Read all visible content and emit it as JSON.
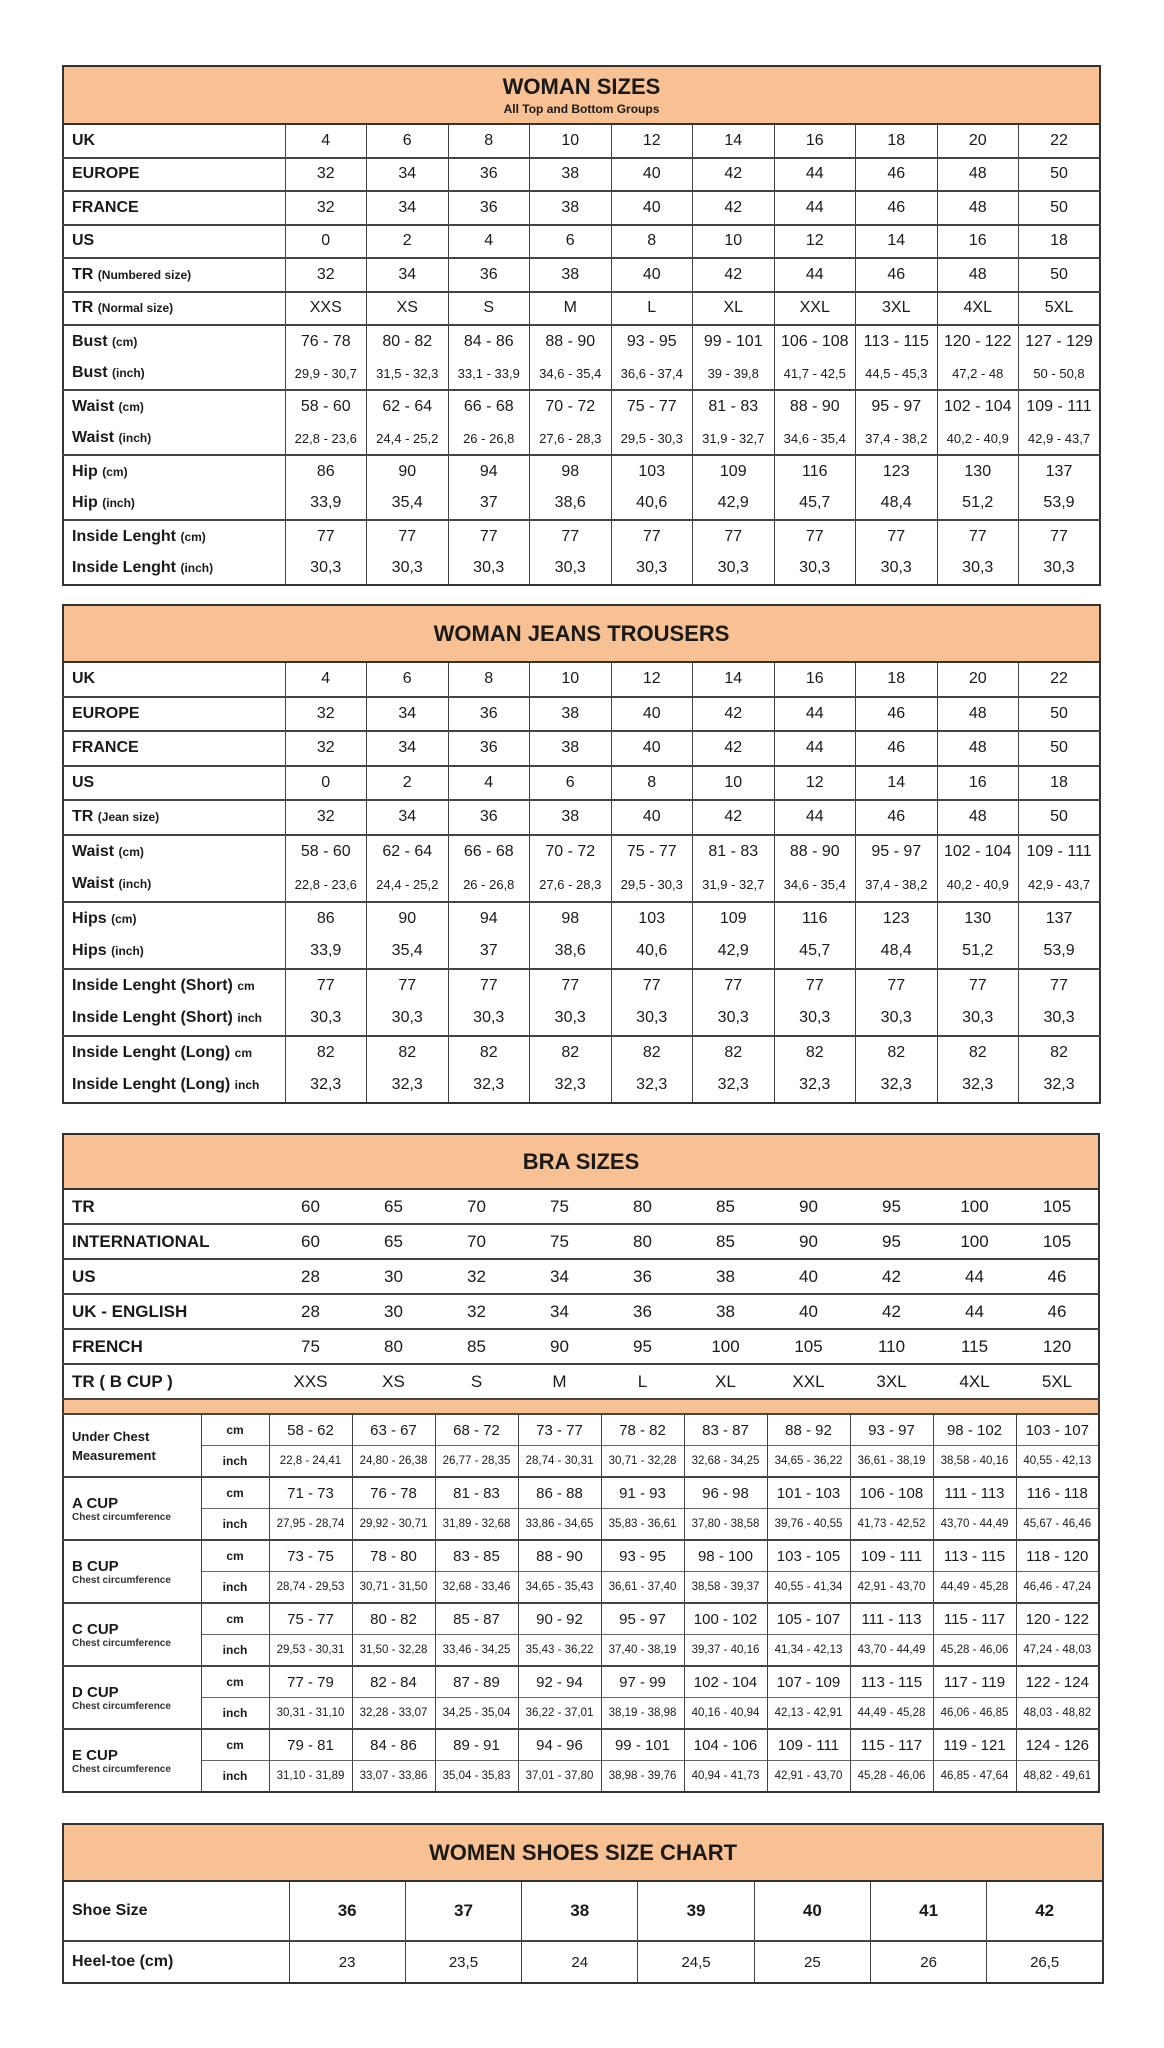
{
  "woman_sizes": {
    "title": "WOMAN SIZES",
    "subtitle": "All Top and Bottom Groups",
    "groups": [
      [
        {
          "label": "UK",
          "values": [
            "4",
            "6",
            "8",
            "10",
            "12",
            "14",
            "16",
            "18",
            "20",
            "22"
          ]
        }
      ],
      [
        {
          "label": "EUROPE",
          "values": [
            "32",
            "34",
            "36",
            "38",
            "40",
            "42",
            "44",
            "46",
            "48",
            "50"
          ]
        }
      ],
      [
        {
          "label": "FRANCE",
          "values": [
            "32",
            "34",
            "36",
            "38",
            "40",
            "42",
            "44",
            "46",
            "48",
            "50"
          ]
        }
      ],
      [
        {
          "label": "US",
          "values": [
            "0",
            "2",
            "4",
            "6",
            "8",
            "10",
            "12",
            "14",
            "16",
            "18"
          ]
        }
      ],
      [
        {
          "label": "TR",
          "note": "(Numbered size)",
          "values": [
            "32",
            "34",
            "36",
            "38",
            "40",
            "42",
            "44",
            "46",
            "48",
            "50"
          ]
        }
      ],
      [
        {
          "label": "TR",
          "note": "(Normal size)",
          "values": [
            "XXS",
            "XS",
            "S",
            "M",
            "L",
            "XL",
            "XXL",
            "3XL",
            "4XL",
            "5XL"
          ]
        }
      ],
      [
        {
          "label": "Bust",
          "note": "(cm)",
          "values": [
            "76 - 78",
            "80 - 82",
            "84 - 86",
            "88 - 90",
            "93 - 95",
            "99 - 101",
            "106 - 108",
            "113 - 115",
            "120 - 122",
            "127 - 129"
          ]
        },
        {
          "label": "Bust",
          "note": "(inch)",
          "small": true,
          "values": [
            "29,9 - 30,7",
            "31,5 - 32,3",
            "33,1 - 33,9",
            "34,6 - 35,4",
            "36,6 - 37,4",
            "39 - 39,8",
            "41,7 - 42,5",
            "44,5 - 45,3",
            "47,2 - 48",
            "50 - 50,8"
          ]
        }
      ],
      [
        {
          "label": "Waist",
          "note": "(cm)",
          "values": [
            "58 - 60",
            "62 - 64",
            "66 - 68",
            "70 - 72",
            "75 - 77",
            "81 - 83",
            "88 - 90",
            "95 - 97",
            "102 - 104",
            "109 - 111"
          ]
        },
        {
          "label": "Waist",
          "note": "(inch)",
          "small": true,
          "values": [
            "22,8 - 23,6",
            "24,4 - 25,2",
            "26 - 26,8",
            "27,6 - 28,3",
            "29,5 - 30,3",
            "31,9 - 32,7",
            "34,6 - 35,4",
            "37,4 - 38,2",
            "40,2 - 40,9",
            "42,9 - 43,7"
          ]
        }
      ],
      [
        {
          "label": "Hip",
          "note": "(cm)",
          "values": [
            "86",
            "90",
            "94",
            "98",
            "103",
            "109",
            "116",
            "123",
            "130",
            "137"
          ]
        },
        {
          "label": "Hip",
          "note": "(inch)",
          "values": [
            "33,9",
            "35,4",
            "37",
            "38,6",
            "40,6",
            "42,9",
            "45,7",
            "48,4",
            "51,2",
            "53,9"
          ]
        }
      ],
      [
        {
          "label": "Inside Lenght",
          "note": "(cm)",
          "values": [
            "77",
            "77",
            "77",
            "77",
            "77",
            "77",
            "77",
            "77",
            "77",
            "77"
          ]
        },
        {
          "label": "Inside Lenght",
          "note": "(inch)",
          "values": [
            "30,3",
            "30,3",
            "30,3",
            "30,3",
            "30,3",
            "30,3",
            "30,3",
            "30,3",
            "30,3",
            "30,3"
          ]
        }
      ]
    ]
  },
  "jeans": {
    "title": "WOMAN JEANS TROUSERS",
    "groups": [
      [
        {
          "label": "UK",
          "values": [
            "4",
            "6",
            "8",
            "10",
            "12",
            "14",
            "16",
            "18",
            "20",
            "22"
          ]
        }
      ],
      [
        {
          "label": "EUROPE",
          "values": [
            "32",
            "34",
            "36",
            "38",
            "40",
            "42",
            "44",
            "46",
            "48",
            "50"
          ]
        }
      ],
      [
        {
          "label": "FRANCE",
          "values": [
            "32",
            "34",
            "36",
            "38",
            "40",
            "42",
            "44",
            "46",
            "48",
            "50"
          ]
        }
      ],
      [
        {
          "label": "US",
          "values": [
            "0",
            "2",
            "4",
            "6",
            "8",
            "10",
            "12",
            "14",
            "16",
            "18"
          ]
        }
      ],
      [
        {
          "label": "TR",
          "note": "(Jean size)",
          "values": [
            "32",
            "34",
            "36",
            "38",
            "40",
            "42",
            "44",
            "46",
            "48",
            "50"
          ]
        }
      ],
      [
        {
          "label": "Waist",
          "note": "(cm)",
          "values": [
            "58 - 60",
            "62 - 64",
            "66 - 68",
            "70 - 72",
            "75 - 77",
            "81 - 83",
            "88 - 90",
            "95 - 97",
            "102 - 104",
            "109 - 111"
          ]
        },
        {
          "label": "Waist",
          "note": "(inch)",
          "small": true,
          "values": [
            "22,8 - 23,6",
            "24,4 - 25,2",
            "26 - 26,8",
            "27,6 - 28,3",
            "29,5 - 30,3",
            "31,9 - 32,7",
            "34,6 - 35,4",
            "37,4 - 38,2",
            "40,2 - 40,9",
            "42,9 - 43,7"
          ]
        }
      ],
      [
        {
          "label": "Hips",
          "note": "(cm)",
          "values": [
            "86",
            "90",
            "94",
            "98",
            "103",
            "109",
            "116",
            "123",
            "130",
            "137"
          ]
        },
        {
          "label": "Hips",
          "note": "(inch)",
          "values": [
            "33,9",
            "35,4",
            "37",
            "38,6",
            "40,6",
            "42,9",
            "45,7",
            "48,4",
            "51,2",
            "53,9"
          ]
        }
      ],
      [
        {
          "label": "Inside Lenght (Short)",
          "note": "cm",
          "values": [
            "77",
            "77",
            "77",
            "77",
            "77",
            "77",
            "77",
            "77",
            "77",
            "77"
          ]
        },
        {
          "label": "Inside Lenght (Short)",
          "note": "inch",
          "values": [
            "30,3",
            "30,3",
            "30,3",
            "30,3",
            "30,3",
            "30,3",
            "30,3",
            "30,3",
            "30,3",
            "30,3"
          ]
        }
      ],
      [
        {
          "label": "Inside Lenght (Long)",
          "note": "cm",
          "values": [
            "82",
            "82",
            "82",
            "82",
            "82",
            "82",
            "82",
            "82",
            "82",
            "82"
          ]
        },
        {
          "label": "Inside Lenght (Long)",
          "note": "inch",
          "values": [
            "32,3",
            "32,3",
            "32,3",
            "32,3",
            "32,3",
            "32,3",
            "32,3",
            "32,3",
            "32,3",
            "32,3"
          ]
        }
      ]
    ]
  },
  "bra": {
    "title": "BRA SIZES",
    "top_rows": [
      {
        "label": "TR",
        "values": [
          "60",
          "65",
          "70",
          "75",
          "80",
          "85",
          "90",
          "95",
          "100",
          "105"
        ]
      },
      {
        "label": "INTERNATIONAL",
        "values": [
          "60",
          "65",
          "70",
          "75",
          "80",
          "85",
          "90",
          "95",
          "100",
          "105"
        ]
      },
      {
        "label": "US",
        "values": [
          "28",
          "30",
          "32",
          "34",
          "36",
          "38",
          "40",
          "42",
          "44",
          "46"
        ]
      },
      {
        "label": "UK - ENGLISH",
        "values": [
          "28",
          "30",
          "32",
          "34",
          "36",
          "38",
          "40",
          "42",
          "44",
          "46"
        ]
      },
      {
        "label": "FRENCH",
        "values": [
          "75",
          "80",
          "85",
          "90",
          "95",
          "100",
          "105",
          "110",
          "115",
          "120"
        ]
      },
      {
        "label": "TR ( B CUP )",
        "values": [
          "XXS",
          "XS",
          "S",
          "M",
          "L",
          "XL",
          "XXL",
          "3XL",
          "4XL",
          "5XL"
        ]
      }
    ],
    "units": {
      "cm": "cm",
      "inch": "inch"
    },
    "cups": [
      {
        "label": "Under Chest Measurement",
        "sub": "",
        "cm": [
          "58 - 62",
          "63 - 67",
          "68 - 72",
          "73 - 77",
          "78 - 82",
          "83 - 87",
          "88 - 92",
          "93 - 97",
          "98 - 102",
          "103 - 107"
        ],
        "inch": [
          "22,8 - 24,41",
          "24,80 - 26,38",
          "26,77 - 28,35",
          "28,74 - 30,31",
          "30,71 - 32,28",
          "32,68 - 34,25",
          "34,65 - 36,22",
          "36,61 - 38,19",
          "38,58 - 40,16",
          "40,55 - 42,13"
        ]
      },
      {
        "label": "A CUP",
        "sub": "Chest circumference",
        "cm": [
          "71 - 73",
          "76 - 78",
          "81 - 83",
          "86 - 88",
          "91 - 93",
          "96 - 98",
          "101 - 103",
          "106 - 108",
          "111 - 113",
          "116 - 118"
        ],
        "inch": [
          "27,95 - 28,74",
          "29,92 - 30,71",
          "31,89 - 32,68",
          "33,86 - 34,65",
          "35,83 - 36,61",
          "37,80 - 38,58",
          "39,76 - 40,55",
          "41,73 - 42,52",
          "43,70 - 44,49",
          "45,67 - 46,46"
        ]
      },
      {
        "label": "B CUP",
        "sub": "Chest circumference",
        "cm": [
          "73 - 75",
          "78 - 80",
          "83 - 85",
          "88 - 90",
          "93 - 95",
          "98 - 100",
          "103 - 105",
          "109 - 111",
          "113 - 115",
          "118 - 120"
        ],
        "inch": [
          "28,74 - 29,53",
          "30,71 - 31,50",
          "32,68 - 33,46",
          "34,65 - 35,43",
          "36,61 - 37,40",
          "38,58 - 39,37",
          "40,55 - 41,34",
          "42,91 - 43,70",
          "44,49 - 45,28",
          "46,46 - 47,24"
        ]
      },
      {
        "label": "C CUP",
        "sub": "Chest circumference",
        "cm": [
          "75 - 77",
          "80 - 82",
          "85 - 87",
          "90 - 92",
          "95 - 97",
          "100 - 102",
          "105 - 107",
          "111 - 113",
          "115 - 117",
          "120 - 122"
        ],
        "inch": [
          "29,53 - 30,31",
          "31,50 - 32,28",
          "33,46 - 34,25",
          "35,43 - 36,22",
          "37,40 - 38,19",
          "39,37 - 40,16",
          "41,34 - 42,13",
          "43,70 - 44,49",
          "45,28 - 46,06",
          "47,24 - 48,03"
        ]
      },
      {
        "label": "D CUP",
        "sub": "Chest circumference",
        "cm": [
          "77 - 79",
          "82 - 84",
          "87 - 89",
          "92 - 94",
          "97 - 99",
          "102 - 104",
          "107 - 109",
          "113 - 115",
          "117 - 119",
          "122 - 124"
        ],
        "inch": [
          "30,31 - 31,10",
          "32,28 - 33,07",
          "34,25 - 35,04",
          "36,22 - 37,01",
          "38,19 - 38,98",
          "40,16 - 40,94",
          "42,13 - 42,91",
          "44,49 - 45,28",
          "46,06 - 46,85",
          "48,03 - 48,82"
        ]
      },
      {
        "label": "E CUP",
        "sub": "Chest circumference",
        "cm": [
          "79 - 81",
          "84 - 86",
          "89 - 91",
          "94 - 96",
          "99 - 101",
          "104 - 106",
          "109 - 111",
          "115 - 117",
          "119 - 121",
          "124 - 126"
        ],
        "inch": [
          "31,10 - 31,89",
          "33,07 - 33,86",
          "35,04 - 35,83",
          "37,01 - 37,80",
          "38,98 - 39,76",
          "40,94 - 41,73",
          "42,91 - 43,70",
          "45,28 - 46,06",
          "46,85 - 47,64",
          "48,82 - 49,61"
        ]
      }
    ]
  },
  "shoes": {
    "title": "WOMEN SHOES SIZE CHART",
    "rows": [
      {
        "label": "Shoe Size",
        "bold": true,
        "values": [
          "36",
          "37",
          "38",
          "39",
          "40",
          "41",
          "42"
        ]
      },
      {
        "label": "Heel-toe (cm)",
        "values": [
          "23",
          "23,5",
          "24",
          "24,5",
          "25",
          "26",
          "26,5"
        ]
      }
    ]
  },
  "colors": {
    "header": "#f7c193",
    "border": "#333333"
  }
}
